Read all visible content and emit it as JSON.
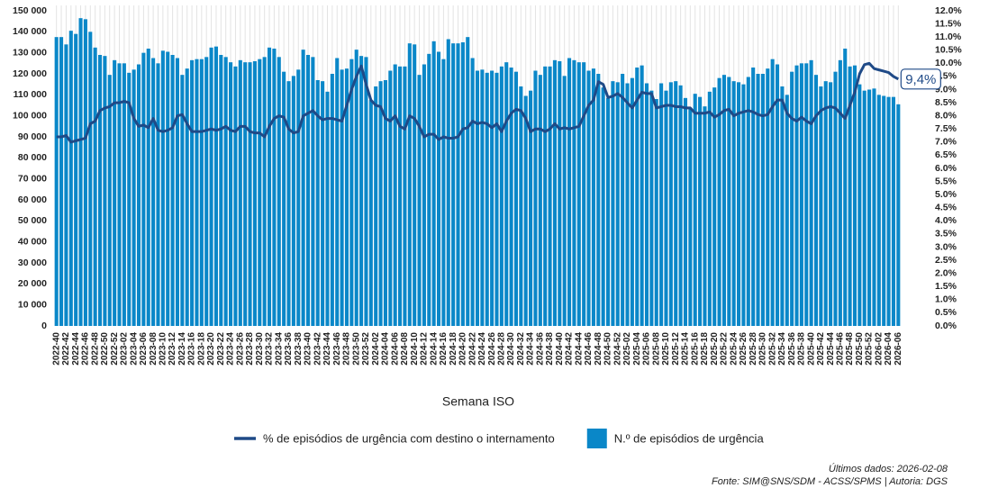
{
  "chart_data": {
    "type": "combo",
    "x_label": "Semana ISO",
    "footnote": "Últimos dados: 2026-02-08",
    "source": "Fonte: SIM@SNS/SDM - ACSS/SPMS | Autoria: DGS",
    "grid": true,
    "legend": "bottom",
    "ylim": [
      0,
      150000
    ],
    "yticks": [
      0,
      {
        "value": 10000,
        "label": "10 000"
      },
      {
        "value": 20000,
        "label": "20 000"
      },
      {
        "value": 30000,
        "label": "30 000"
      },
      {
        "value": 40000,
        "label": "40 000"
      },
      {
        "value": 50000,
        "label": "50 000"
      },
      {
        "value": 60000,
        "label": "60 000"
      },
      {
        "value": 70000,
        "label": "70 000"
      },
      {
        "value": 80000,
        "label": "80 000"
      },
      {
        "value": 90000,
        "label": "90 000"
      },
      {
        "value": 100000,
        "label": "100 000"
      },
      {
        "value": 110000,
        "label": "110 000"
      },
      {
        "value": 120000,
        "label": "120 000"
      },
      {
        "value": 130000,
        "label": "130 000"
      },
      {
        "value": 140000,
        "label": "140 000"
      },
      {
        "value": 150000,
        "label": "150 000"
      }
    ],
    "y2lim": [
      0,
      12
    ],
    "y2ticks": [
      {
        "value": 0,
        "label": "0.0%"
      },
      {
        "value": 0.5,
        "label": "0.5%"
      },
      {
        "value": 1,
        "label": "1.0%"
      },
      {
        "value": 1.5,
        "label": "1.5%"
      },
      {
        "value": 2,
        "label": "2.0%"
      },
      {
        "value": 2.5,
        "label": "2.5%"
      },
      {
        "value": 3,
        "label": "3.0%"
      },
      {
        "value": 3.5,
        "label": "3.5%"
      },
      {
        "value": 4,
        "label": "4.0%"
      },
      {
        "value": 4.5,
        "label": "4.5%"
      },
      {
        "value": 5,
        "label": "5.0%"
      },
      {
        "value": 5.5,
        "label": "5.5%"
      },
      {
        "value": 6,
        "label": "6.0%"
      },
      {
        "value": 6.5,
        "label": "6.5%"
      },
      {
        "value": 7,
        "label": "7.0%"
      },
      {
        "value": 7.5,
        "label": "7.5%"
      },
      {
        "value": 8,
        "label": "8.0%"
      },
      {
        "value": 8.5,
        "label": "8.5%"
      },
      {
        "value": 9,
        "label": "9.0%"
      },
      {
        "value": 9.5,
        "label": "9.5%"
      },
      {
        "value": 10,
        "label": "10.0%"
      },
      {
        "value": 10.5,
        "label": "10.5%"
      },
      {
        "value": 11,
        "label": "11.0%"
      },
      {
        "value": 11.5,
        "label": "11.5%"
      },
      {
        "value": 12,
        "label": "12.0%"
      }
    ],
    "categories": [
      "2022-40",
      null,
      "2022-42",
      null,
      "2022-44",
      null,
      "2022-46",
      null,
      "2022-48",
      null,
      "2022-50",
      null,
      "2022-52",
      null,
      "2023-02",
      null,
      "2023-04",
      null,
      "2023-06",
      null,
      "2023-08",
      null,
      "2023-10",
      null,
      "2023-12",
      null,
      "2023-14",
      null,
      "2023-16",
      null,
      "2023-18",
      null,
      "2023-20",
      null,
      "2023-22",
      null,
      "2023-24",
      null,
      "2023-26",
      null,
      "2023-28",
      null,
      "2023-30",
      null,
      "2023-32",
      null,
      "2023-34",
      null,
      "2023-36",
      null,
      "2023-38",
      null,
      "2023-40",
      null,
      "2023-42",
      null,
      "2023-44",
      null,
      "2023-46",
      null,
      "2023-48",
      null,
      "2023-50",
      null,
      "2023-52",
      null,
      "2024-02",
      null,
      "2024-04",
      null,
      "2024-06",
      null,
      "2024-08",
      null,
      "2024-10",
      null,
      "2024-12",
      null,
      "2024-14",
      null,
      "2024-16",
      null,
      "2024-18",
      null,
      "2024-20",
      null,
      "2024-22",
      null,
      "2024-24",
      null,
      "2024-26",
      null,
      "2024-28",
      null,
      "2024-30",
      null,
      "2024-32",
      null,
      "2024-34",
      null,
      "2024-36",
      null,
      "2024-38",
      null,
      "2024-40",
      null,
      "2024-42",
      null,
      "2024-44",
      null,
      "2024-46",
      null,
      "2024-48",
      null,
      "2024-50",
      null,
      "2024-52",
      null,
      "2025-02",
      null,
      "2025-04",
      null,
      "2025-06",
      null,
      "2025-08",
      null,
      "2025-10",
      null,
      "2025-12",
      null,
      "2025-14",
      null,
      "2025-16",
      null,
      "2025-18",
      null,
      "2025-20",
      null,
      "2025-22",
      null,
      "2025-24",
      null,
      "2025-26",
      null,
      "2025-28",
      null,
      "2025-30",
      null,
      "2025-32",
      null,
      "2025-34",
      null,
      "2025-36",
      null,
      "2025-38",
      null,
      "2025-40",
      null,
      "2025-42",
      null,
      "2025-44",
      null,
      "2025-46",
      null,
      "2025-48",
      null,
      "2025-50",
      null,
      "2025-52",
      null,
      "2026-02",
      null,
      "2026-04",
      null,
      "2026-06"
    ],
    "series": [
      {
        "name": "% de episódios de urgência com destino o internamento",
        "type": "line",
        "axis": "y2",
        "color": "#1f4a87",
        "values": [
          7.2,
          7.2,
          7.25,
          7.0,
          7.05,
          7.1,
          7.15,
          7.7,
          7.8,
          8.2,
          8.3,
          8.35,
          8.5,
          8.5,
          8.55,
          8.5,
          7.9,
          7.6,
          7.65,
          7.55,
          7.9,
          7.45,
          7.4,
          7.45,
          7.55,
          8.0,
          8.05,
          7.7,
          7.4,
          7.4,
          7.4,
          7.45,
          7.5,
          7.45,
          7.5,
          7.6,
          7.45,
          7.4,
          7.6,
          7.6,
          7.4,
          7.35,
          7.35,
          7.2,
          7.6,
          7.9,
          8.0,
          7.95,
          7.5,
          7.35,
          7.4,
          8.0,
          8.1,
          8.2,
          8.0,
          7.85,
          7.9,
          7.9,
          7.85,
          7.8,
          8.4,
          9.0,
          9.5,
          9.9,
          9.2,
          8.6,
          8.4,
          8.35,
          7.9,
          7.8,
          8.0,
          7.6,
          7.5,
          8.0,
          7.9,
          7.6,
          7.2,
          7.3,
          7.3,
          7.1,
          7.2,
          7.15,
          7.15,
          7.2,
          7.5,
          7.55,
          7.8,
          7.7,
          7.75,
          7.7,
          7.55,
          7.7,
          7.4,
          7.8,
          8.1,
          8.25,
          8.2,
          7.9,
          7.4,
          7.5,
          7.5,
          7.4,
          7.5,
          7.7,
          7.5,
          7.55,
          7.5,
          7.55,
          7.6,
          8.0,
          8.4,
          8.6,
          9.3,
          9.2,
          8.7,
          8.75,
          8.85,
          8.7,
          8.5,
          8.3,
          8.6,
          8.9,
          8.85,
          8.85,
          8.3,
          8.35,
          8.4,
          8.4,
          8.35,
          8.35,
          8.3,
          8.3,
          8.1,
          8.1,
          8.1,
          8.15,
          7.95,
          8.05,
          8.2,
          8.25,
          8.0,
          8.1,
          8.15,
          8.2,
          8.15,
          8.05,
          8.0,
          8.05,
          8.35,
          8.6,
          8.6,
          8.1,
          7.9,
          7.8,
          7.95,
          7.8,
          7.7,
          8.0,
          8.2,
          8.3,
          8.35,
          8.3,
          8.1,
          7.9,
          8.4,
          8.9,
          9.6,
          9.95,
          10.0,
          9.8,
          9.75,
          9.7,
          9.65,
          9.5,
          9.4
        ],
        "value_labels": [
          null,
          null,
          null,
          null,
          null,
          null,
          null,
          null,
          null,
          null,
          null,
          null,
          null,
          null,
          null,
          null,
          null,
          null,
          null,
          null,
          null,
          null,
          null,
          null,
          null,
          null,
          null,
          null,
          null,
          null,
          null,
          null,
          null,
          null,
          null,
          null,
          null,
          null,
          null,
          null,
          null,
          null,
          null,
          null,
          null,
          null,
          null,
          null,
          null,
          null,
          null,
          null,
          null,
          null,
          null,
          null,
          null,
          null,
          null,
          null,
          null,
          null,
          null,
          null,
          null,
          null,
          null,
          null,
          null,
          null,
          null,
          null,
          null,
          null,
          null,
          null,
          null,
          null,
          null,
          null,
          null,
          null,
          null,
          null,
          null,
          null,
          null,
          null,
          null,
          null,
          null,
          null,
          null,
          null,
          null,
          null,
          null,
          null,
          null,
          null,
          null,
          null,
          null,
          null,
          null,
          null,
          null,
          null,
          null,
          null,
          null,
          null,
          null,
          null,
          null,
          null,
          null,
          null,
          null,
          null,
          null,
          null,
          null,
          null,
          null,
          null,
          null,
          null,
          null,
          null,
          null,
          null,
          null,
          null,
          null,
          null,
          null,
          null,
          null,
          null,
          null,
          null,
          null,
          null,
          null,
          null,
          null,
          null,
          null,
          null,
          null,
          null,
          null,
          null,
          null,
          null,
          null,
          null,
          null,
          null,
          null,
          null,
          null,
          null,
          null,
          null,
          null,
          null,
          null,
          null,
          null,
          null,
          null,
          null,
          "9,4%"
        ]
      },
      {
        "name": "N.º de episódios de urgência",
        "type": "bar",
        "color": "#0a87c8",
        "values": [
          137500,
          137500,
          134000,
          140500,
          139000,
          146500,
          146000,
          140000,
          132500,
          129000,
          128500,
          119500,
          126500,
          125000,
          125000,
          120500,
          122000,
          124500,
          130000,
          132000,
          127500,
          125000,
          131000,
          130500,
          129000,
          127500,
          119500,
          122500,
          126500,
          127000,
          127000,
          128000,
          132500,
          133000,
          129000,
          128000,
          125500,
          123500,
          126500,
          125500,
          125500,
          126000,
          127000,
          128000,
          132500,
          132000,
          128000,
          121000,
          116500,
          119000,
          122000,
          131500,
          129000,
          128000,
          117000,
          116500,
          111500,
          120000,
          127500,
          122000,
          122500,
          127000,
          131500,
          128500,
          128000,
          107500,
          114000,
          116500,
          117000,
          121500,
          124500,
          123500,
          123500,
          134500,
          134000,
          119500,
          124500,
          129500,
          135500,
          130500,
          127000,
          136500,
          134500,
          134500,
          135000,
          137500,
          127500,
          121500,
          122000,
          120500,
          121500,
          120500,
          123500,
          125500,
          123000,
          121000,
          114000,
          109500,
          112000,
          121500,
          119500,
          123500,
          123500,
          126500,
          126000,
          119000,
          127500,
          126500,
          125500,
          125500,
          121500,
          122500,
          120000,
          113500,
          108500,
          116500,
          116000,
          120000,
          115500,
          118000,
          123000,
          124000,
          115500,
          112000,
          108000,
          115500,
          112000,
          116000,
          116500,
          114500,
          108500,
          103500,
          110500,
          109000,
          104500,
          111500,
          113500,
          118000,
          119500,
          118500,
          116500,
          116000,
          115000,
          118500,
          123000,
          120000,
          120000,
          122500,
          127000,
          124500,
          114000,
          110000,
          121000,
          124000,
          125000,
          125000,
          126500,
          119500,
          114000,
          116500,
          116000,
          121000,
          126500,
          132000,
          123500,
          124000,
          115000,
          112000,
          112500,
          113000,
          110000,
          109500,
          109000,
          109000,
          105500
        ]
      }
    ]
  }
}
